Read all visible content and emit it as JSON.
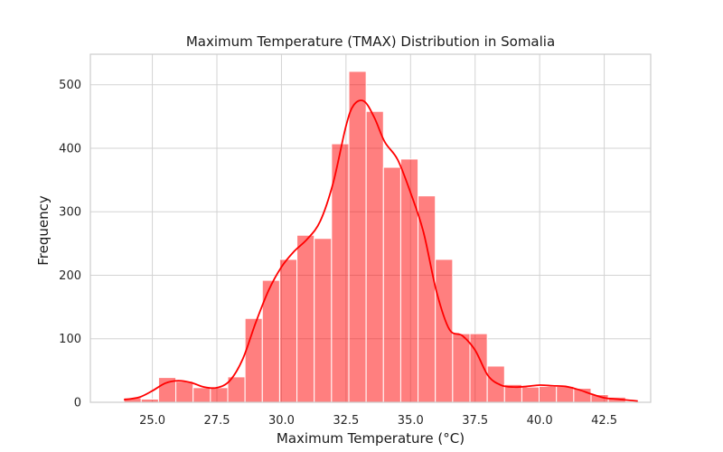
{
  "chart_data": {
    "type": "bar",
    "title": "Maximum Temperature (TMAX) Distribution in Somalia",
    "xlabel": "Maximum Temperature (°C)",
    "ylabel": "Frequency",
    "xlim": [
      22.6,
      44.3
    ],
    "ylim": [
      0,
      548
    ],
    "xticks": [
      25.0,
      27.5,
      30.0,
      32.5,
      35.0,
      37.5,
      40.0,
      42.5
    ],
    "xtick_labels": [
      "25.0",
      "27.5",
      "30.0",
      "32.5",
      "35.0",
      "37.5",
      "40.0",
      "42.5"
    ],
    "yticks": [
      0,
      100,
      200,
      300,
      400,
      500
    ],
    "ytick_labels": [
      "0",
      "100",
      "200",
      "300",
      "400",
      "500"
    ],
    "grid": true,
    "bar_color": "#ff0000",
    "bar_opacity": 0.5,
    "kde_color": "#ff0000",
    "bins": [
      {
        "x0": 23.9,
        "x1": 24.57,
        "count": 7
      },
      {
        "x0": 24.57,
        "x1": 25.24,
        "count": 5
      },
      {
        "x0": 25.24,
        "x1": 25.91,
        "count": 39
      },
      {
        "x0": 25.91,
        "x1": 26.58,
        "count": 33
      },
      {
        "x0": 26.58,
        "x1": 27.25,
        "count": 23
      },
      {
        "x0": 27.25,
        "x1": 27.92,
        "count": 23
      },
      {
        "x0": 27.92,
        "x1": 28.59,
        "count": 40
      },
      {
        "x0": 28.59,
        "x1": 29.26,
        "count": 132
      },
      {
        "x0": 29.26,
        "x1": 29.93,
        "count": 192
      },
      {
        "x0": 29.93,
        "x1": 30.6,
        "count": 225
      },
      {
        "x0": 30.6,
        "x1": 31.27,
        "count": 263
      },
      {
        "x0": 31.27,
        "x1": 31.94,
        "count": 258
      },
      {
        "x0": 31.94,
        "x1": 32.61,
        "count": 407
      },
      {
        "x0": 32.61,
        "x1": 33.28,
        "count": 521
      },
      {
        "x0": 33.28,
        "x1": 33.95,
        "count": 458
      },
      {
        "x0": 33.95,
        "x1": 34.62,
        "count": 370
      },
      {
        "x0": 34.62,
        "x1": 35.29,
        "count": 383
      },
      {
        "x0": 35.29,
        "x1": 35.96,
        "count": 325
      },
      {
        "x0": 35.96,
        "x1": 36.63,
        "count": 225
      },
      {
        "x0": 36.63,
        "x1": 37.3,
        "count": 108
      },
      {
        "x0": 37.3,
        "x1": 37.97,
        "count": 108
      },
      {
        "x0": 37.97,
        "x1": 38.64,
        "count": 57
      },
      {
        "x0": 38.64,
        "x1": 39.31,
        "count": 28
      },
      {
        "x0": 39.31,
        "x1": 39.98,
        "count": 24
      },
      {
        "x0": 39.98,
        "x1": 40.65,
        "count": 25
      },
      {
        "x0": 40.65,
        "x1": 41.32,
        "count": 25
      },
      {
        "x0": 41.32,
        "x1": 41.99,
        "count": 22
      },
      {
        "x0": 41.99,
        "x1": 42.66,
        "count": 12
      },
      {
        "x0": 42.66,
        "x1": 43.33,
        "count": 8
      }
    ],
    "kde": {
      "x": [
        23.9,
        24.5,
        25.0,
        25.5,
        26.0,
        26.5,
        27.0,
        27.5,
        28.0,
        28.5,
        29.0,
        29.5,
        30.0,
        30.5,
        31.0,
        31.5,
        32.0,
        32.5,
        32.8,
        33.2,
        33.6,
        34.0,
        34.5,
        35.0,
        35.5,
        36.0,
        36.5,
        37.0,
        37.5,
        38.0,
        38.5,
        39.0,
        39.5,
        40.0,
        40.5,
        41.0,
        41.5,
        42.0,
        42.5,
        43.0,
        43.5,
        43.8
      ],
      "y": [
        4,
        8,
        18,
        30,
        34,
        31,
        24,
        23,
        34,
        68,
        125,
        176,
        213,
        238,
        257,
        285,
        345,
        435,
        468,
        474,
        448,
        410,
        382,
        330,
        268,
        175,
        115,
        105,
        82,
        42,
        27,
        24,
        25,
        27,
        26,
        25,
        20,
        13,
        7,
        5,
        3,
        2
      ]
    }
  }
}
